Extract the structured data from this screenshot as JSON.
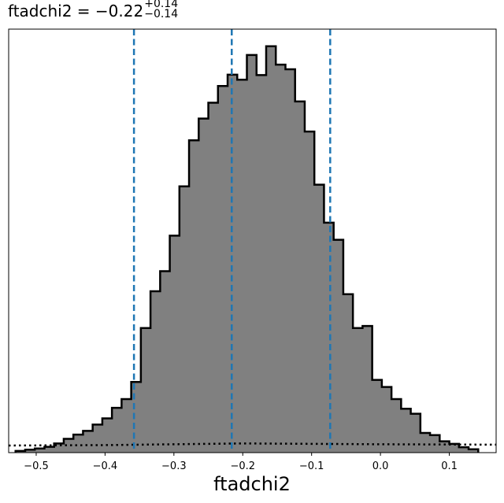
{
  "chart_data": {
    "type": "histogram",
    "title": {
      "name": "ftadchi2",
      "equals": "=",
      "median": "−0.22",
      "upper": "+0.14",
      "lower": "−0.14"
    },
    "xlabel": "ftadchi2",
    "xlim": [
      -0.54,
      0.168
    ],
    "ylim": [
      0,
      1.013
    ],
    "grid": false,
    "xticks": [
      -0.5,
      -0.4,
      -0.3,
      -0.2,
      -0.1,
      0.0,
      0.1
    ],
    "xtick_labels": [
      "−0.5",
      "−0.4",
      "−0.3",
      "−0.2",
      "−0.1",
      "0.0",
      "0.1"
    ],
    "bin_edges": [
      -0.53,
      -0.516,
      -0.502,
      -0.488,
      -0.474,
      -0.46,
      -0.446,
      -0.432,
      -0.418,
      -0.404,
      -0.39,
      -0.376,
      -0.362,
      -0.348,
      -0.334,
      -0.32,
      -0.306,
      -0.292,
      -0.278,
      -0.264,
      -0.25,
      -0.236,
      -0.222,
      -0.208,
      -0.194,
      -0.18,
      -0.166,
      -0.152,
      -0.138,
      -0.124,
      -0.11,
      -0.096,
      -0.082,
      -0.068,
      -0.054,
      -0.04,
      -0.026,
      -0.012,
      0.002,
      0.016,
      0.03,
      0.044,
      0.058,
      0.072,
      0.086,
      0.1,
      0.114,
      0.128,
      0.142
    ],
    "values": [
      0.004,
      0.007,
      0.01,
      0.014,
      0.022,
      0.033,
      0.043,
      0.052,
      0.067,
      0.082,
      0.107,
      0.128,
      0.169,
      0.298,
      0.386,
      0.434,
      0.519,
      0.637,
      0.747,
      0.799,
      0.837,
      0.877,
      0.904,
      0.892,
      0.951,
      0.903,
      0.972,
      0.928,
      0.917,
      0.84,
      0.768,
      0.641,
      0.55,
      0.509,
      0.379,
      0.298,
      0.303,
      0.174,
      0.157,
      0.128,
      0.105,
      0.093,
      0.047,
      0.042,
      0.027,
      0.021,
      0.013,
      0.008
    ],
    "fill_color": "#808080",
    "edge_color": "#000000",
    "quantile_lines": [
      -0.358,
      -0.216,
      -0.073
    ],
    "quantile_color": "#1f77b4",
    "prior": {
      "x": [
        -0.54,
        -0.4,
        -0.3,
        -0.2,
        -0.1,
        0.0,
        0.168
      ],
      "y": [
        0.017,
        0.018,
        0.02,
        0.022,
        0.021,
        0.02,
        0.019
      ],
      "style": "dotted",
      "color": "#000000"
    }
  }
}
